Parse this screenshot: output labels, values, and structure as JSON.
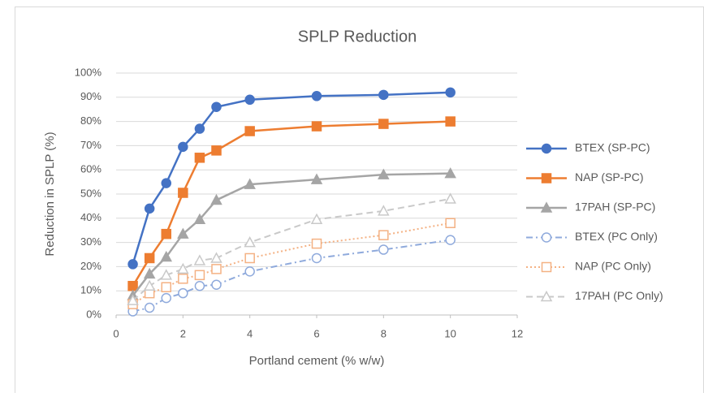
{
  "chart_data": {
    "type": "line",
    "title": "SPLP Reduction",
    "x_label": "Portland cement (% w/w)",
    "y_label": "Reduction in SPLP (%)",
    "x": [
      0.5,
      1,
      1.5,
      2,
      2.5,
      3,
      4,
      6,
      8,
      10
    ],
    "series": [
      {
        "name": "BTEX (SP-PC)",
        "color": "#4472c4",
        "marker": "circle",
        "filled": true,
        "line_style": "solid",
        "values": [
          21,
          44,
          54.5,
          69.5,
          77,
          86,
          89,
          90.5,
          91,
          92
        ]
      },
      {
        "name": "NAP (SP-PC)",
        "color": "#ed7d31",
        "marker": "square",
        "filled": true,
        "line_style": "solid",
        "values": [
          12,
          23.5,
          33.5,
          50.5,
          65,
          68,
          76,
          78,
          79,
          80
        ]
      },
      {
        "name": "17PAH (SP-PC)",
        "color": "#a5a5a5",
        "marker": "triangle",
        "filled": true,
        "line_style": "solid",
        "values": [
          8,
          17,
          24,
          33.5,
          39.5,
          47.5,
          54,
          56,
          58,
          58.5
        ]
      },
      {
        "name": "BTEX (PC Only)",
        "color": "#8faadc",
        "marker": "circle",
        "filled": false,
        "line_style": "dashdot",
        "values": [
          1.5,
          3,
          7,
          9,
          12,
          12.5,
          18,
          23.5,
          27,
          31
        ]
      },
      {
        "name": "NAP (PC Only)",
        "color": "#f4b183",
        "marker": "square",
        "filled": false,
        "line_style": "dotted",
        "values": [
          4.5,
          9,
          11.5,
          15,
          16.5,
          19,
          23.5,
          29.5,
          33,
          38
        ]
      },
      {
        "name": "17PAH (PC Only)",
        "color": "#c9c9c9",
        "marker": "triangle",
        "filled": false,
        "line_style": "dashed",
        "values": [
          6,
          12,
          16.5,
          19,
          22.5,
          23.5,
          30,
          39.5,
          43,
          48
        ]
      }
    ],
    "xlim": [
      0,
      12
    ],
    "xticks": [
      0,
      2,
      4,
      6,
      8,
      10,
      12
    ],
    "ylim": [
      0,
      100
    ],
    "yticks": [
      {
        "value": 0,
        "label": "0%"
      },
      {
        "value": 10,
        "label": "10%"
      },
      {
        "value": 20,
        "label": "20%"
      },
      {
        "value": 30,
        "label": "30%"
      },
      {
        "value": 40,
        "label": "40%"
      },
      {
        "value": 50,
        "label": "50%"
      },
      {
        "value": 60,
        "label": "60%"
      },
      {
        "value": 70,
        "label": "70%"
      },
      {
        "value": 80,
        "label": "80%"
      },
      {
        "value": 90,
        "label": "90%"
      },
      {
        "value": 100,
        "label": "100%"
      }
    ],
    "grid": true,
    "legend": "right"
  }
}
